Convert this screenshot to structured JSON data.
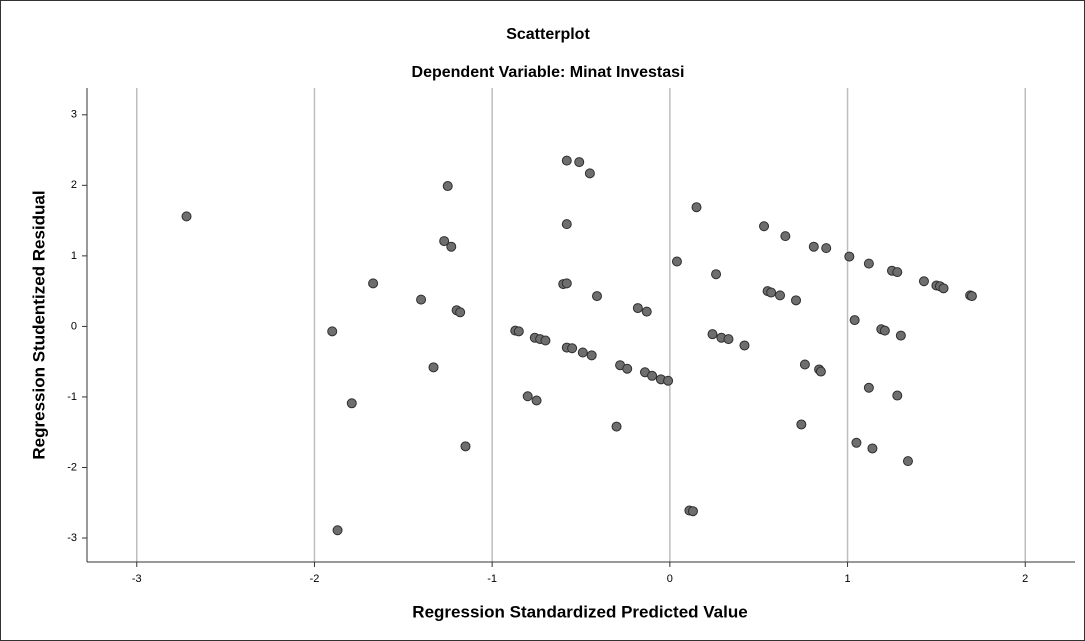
{
  "chart_data": {
    "type": "scatter",
    "title": "Scatterplot",
    "subtitle": "Dependent Variable: Minat Investasi",
    "x_label": "Regression Standardized Predicted Value",
    "y_label": "Regression Studentized Residual",
    "color": "#6e6e6e",
    "xgrid": true,
    "xlim": [
      -3.28,
      2.28
    ],
    "ylim": [
      -3.34,
      3.38
    ],
    "xticks": [
      -3,
      -2,
      -1,
      0,
      1,
      2
    ],
    "yticks": [
      -3,
      -2,
      -1,
      0,
      1,
      2,
      3
    ],
    "x": [
      -2.72,
      -1.9,
      -1.87,
      -1.79,
      -1.67,
      -1.4,
      -1.33,
      -1.27,
      -1.25,
      -1.23,
      -1.2,
      -1.18,
      -1.15,
      -0.87,
      -0.85,
      -0.8,
      -0.76,
      -0.75,
      -0.73,
      -0.7,
      -0.6,
      -0.58,
      -0.58,
      -0.58,
      -0.58,
      -0.55,
      -0.51,
      -0.49,
      -0.45,
      -0.44,
      -0.41,
      -0.3,
      -0.28,
      -0.24,
      -0.18,
      -0.14,
      -0.13,
      -0.1,
      -0.05,
      -0.01,
      0.04,
      0.11,
      0.13,
      0.15,
      0.24,
      0.26,
      0.29,
      0.33,
      0.42,
      0.53,
      0.55,
      0.57,
      0.62,
      0.65,
      0.71,
      0.74,
      0.76,
      0.81,
      0.84,
      0.85,
      0.88,
      1.01,
      1.04,
      1.05,
      1.12,
      1.12,
      1.14,
      1.19,
      1.21,
      1.25,
      1.28,
      1.28,
      1.3,
      1.34,
      1.43,
      1.5,
      1.52,
      1.54,
      1.69,
      1.7
    ],
    "values": [
      1.56,
      -0.07,
      -2.89,
      -1.09,
      0.61,
      0.38,
      -0.58,
      1.21,
      1.99,
      1.13,
      0.23,
      0.2,
      -1.7,
      -0.06,
      -0.07,
      -0.99,
      -0.16,
      -1.05,
      -0.18,
      -0.2,
      0.6,
      2.35,
      1.45,
      0.61,
      -0.3,
      -0.31,
      2.33,
      -0.37,
      2.17,
      -0.41,
      0.43,
      -1.42,
      -0.55,
      -0.6,
      0.26,
      -0.65,
      0.21,
      -0.7,
      -0.75,
      -0.77,
      0.92,
      -2.61,
      -2.62,
      1.69,
      -0.11,
      0.74,
      -0.16,
      -0.18,
      -0.27,
      1.42,
      0.5,
      0.48,
      0.44,
      1.28,
      0.37,
      -1.39,
      -0.54,
      1.13,
      -0.61,
      -0.64,
      1.11,
      0.99,
      0.09,
      -1.65,
      0.89,
      -0.87,
      -1.73,
      -0.04,
      -0.06,
      0.79,
      0.77,
      -0.98,
      -0.13,
      -1.91,
      0.64,
      0.58,
      0.57,
      0.54,
      0.44,
      0.43
    ]
  }
}
